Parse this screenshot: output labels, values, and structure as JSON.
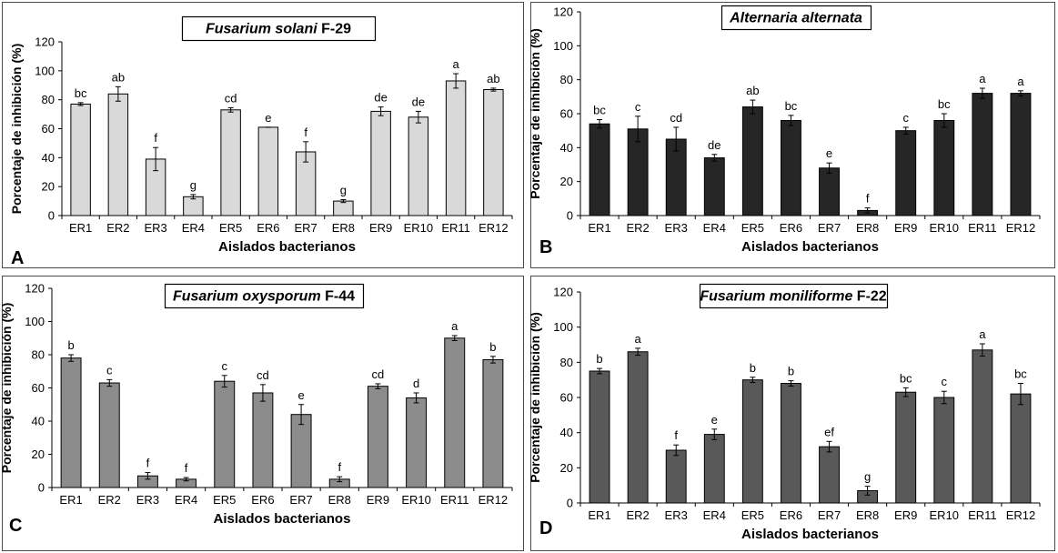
{
  "figure": {
    "background": "#ffffff",
    "border": "#4a4a4a"
  },
  "chart_data": [
    {
      "panel_letter": "A",
      "type": "bar",
      "title_italic": "Fusarium solani",
      "title_suffix": " F-29",
      "xlabel": "Aislados bacterianos",
      "ylabel": "Porcentaje de inhibición (%)",
      "ylim": [
        0,
        120
      ],
      "yticks": [
        "0",
        "20",
        "40",
        "60",
        "80",
        "100",
        "120"
      ],
      "grid": false,
      "bar_color": "#d9d9d9",
      "categories": [
        "ER1",
        "ER2",
        "ER3",
        "ER4",
        "ER5",
        "ER6",
        "ER7",
        "ER8",
        "ER9",
        "ER10",
        "ER11",
        "ER12"
      ],
      "values": [
        77,
        84,
        39,
        13,
        73,
        61,
        44,
        10,
        72,
        68,
        93,
        87
      ],
      "errors": [
        1,
        5,
        8,
        1.5,
        1.5,
        0,
        7,
        1,
        3,
        4,
        5,
        1
      ],
      "letters": [
        "bc",
        "ab",
        "f",
        "g",
        "cd",
        "e",
        "f",
        "g",
        "de",
        "de",
        "a",
        "ab"
      ]
    },
    {
      "panel_letter": "B",
      "type": "bar",
      "title_italic": "Alternaria alternata",
      "title_suffix": "",
      "xlabel": "Aislados bacterianos",
      "ylabel": "Porcentaje de inhibición (%)",
      "ylim": [
        0,
        120
      ],
      "yticks": [
        "0",
        "20",
        "40",
        "60",
        "80",
        "100",
        "120"
      ],
      "grid": false,
      "bar_color": "#262626",
      "categories": [
        "ER1",
        "ER2",
        "ER3",
        "ER4",
        "ER5",
        "ER6",
        "ER7",
        "ER8",
        "ER9",
        "ER10",
        "ER11",
        "ER12"
      ],
      "values": [
        54,
        51,
        45,
        34,
        64,
        56,
        28,
        3,
        50,
        56,
        72,
        72
      ],
      "errors": [
        2.5,
        7.5,
        7,
        2,
        4,
        3,
        3,
        1.5,
        2,
        4,
        3,
        1.5
      ],
      "letters": [
        "bc",
        "c",
        "cd",
        "de",
        "ab",
        "bc",
        "e",
        "f",
        "c",
        "bc",
        "a",
        "a"
      ]
    },
    {
      "panel_letter": "C",
      "type": "bar",
      "title_italic": "Fusarium oxysporum",
      "title_suffix": " F-44",
      "xlabel": "Aislados bacterianos",
      "ylabel": "Porcentaje de inhibición (%)",
      "ylim": [
        0,
        120
      ],
      "yticks": [
        "0",
        "20",
        "40",
        "60",
        "80",
        "100",
        "120"
      ],
      "grid": false,
      "bar_color": "#8c8c8c",
      "categories": [
        "ER1",
        "ER2",
        "ER3",
        "ER4",
        "ER5",
        "ER6",
        "ER7",
        "ER8",
        "ER9",
        "ER10",
        "ER11",
        "ER12"
      ],
      "values": [
        78,
        63,
        7,
        5,
        64,
        57,
        44,
        5,
        61,
        54,
        90,
        77
      ],
      "errors": [
        2,
        2,
        2,
        1,
        3.5,
        5,
        6,
        1.5,
        1.5,
        3,
        1.5,
        2
      ],
      "letters": [
        "b",
        "c",
        "f",
        "f",
        "c",
        "cd",
        "e",
        "f",
        "cd",
        "d",
        "a",
        "b"
      ]
    },
    {
      "panel_letter": "D",
      "type": "bar",
      "title_italic": "Fusarium moniliforme",
      "title_suffix": " F-22",
      "xlabel": "Aislados bacterianos",
      "ylabel": "Porcentaje de inhibición (%)",
      "ylim": [
        0,
        120
      ],
      "yticks": [
        "0",
        "20",
        "40",
        "60",
        "80",
        "100",
        "120"
      ],
      "grid": false,
      "bar_color": "#595959",
      "categories": [
        "ER1",
        "ER2",
        "ER3",
        "ER4",
        "ER5",
        "ER6",
        "ER7",
        "ER8",
        "ER9",
        "ER10",
        "ER11",
        "ER12"
      ],
      "values": [
        75,
        86,
        30,
        39,
        70,
        68,
        32,
        7,
        63,
        60,
        87,
        62
      ],
      "errors": [
        1.5,
        2,
        3,
        3,
        1.5,
        1.5,
        3,
        2.5,
        2.5,
        3.5,
        3.5,
        6
      ],
      "letters": [
        "b",
        "a",
        "f",
        "e",
        "b",
        "b",
        "ef",
        "g",
        "bc",
        "c",
        "a",
        "bc"
      ]
    }
  ]
}
